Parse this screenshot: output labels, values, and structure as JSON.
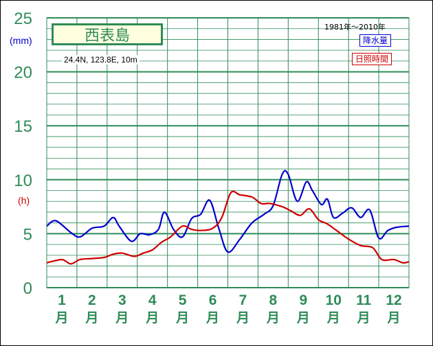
{
  "station": {
    "name": "西表島",
    "coords": "24.4N,  123.8E,  10m",
    "period": "1981年～2010年"
  },
  "legend": {
    "precip_label": "降水量",
    "sun_label": "日照時間"
  },
  "units": {
    "left_unit_mm": "(mm)",
    "left_unit_h": "(h)"
  },
  "colors": {
    "grid": "#2e8b57",
    "axis_text": "#2e8b57",
    "precip": "#0000cc",
    "sun": "#cc0000"
  },
  "chart_data": {
    "type": "line",
    "ylim": [
      0,
      25
    ],
    "yticks": [
      0,
      5,
      10,
      15,
      20,
      25
    ],
    "minor_step": 1,
    "grid": true,
    "legend_position": "top-right",
    "categories": [
      "1月",
      "2月",
      "3月",
      "4月",
      "5月",
      "6月",
      "7月",
      "8月",
      "9月",
      "10月",
      "11月",
      "12月"
    ],
    "month_numbers": [
      "1",
      "2",
      "3",
      "4",
      "5",
      "6",
      "7",
      "8",
      "9",
      "10",
      "11",
      "12"
    ],
    "month_suffix": "月",
    "series": [
      {
        "name": "降水量",
        "color": "#0000cc",
        "x": [
          0.0,
          0.3,
          0.8,
          1.1,
          1.5,
          1.9,
          2.2,
          2.4,
          2.8,
          3.1,
          3.4,
          3.7,
          3.9,
          4.2,
          4.5,
          4.8,
          5.1,
          5.4,
          5.7,
          6.0,
          6.4,
          6.8,
          7.2,
          7.5,
          7.8,
          8.0,
          8.3,
          8.6,
          8.8,
          9.1,
          9.3,
          9.5,
          9.8,
          10.1,
          10.4,
          10.7,
          11.0,
          11.3,
          11.6,
          12.0
        ],
        "values": [
          5.7,
          6.2,
          5.1,
          4.7,
          5.5,
          5.7,
          6.5,
          5.7,
          4.3,
          5.0,
          4.9,
          5.4,
          7.0,
          5.4,
          4.7,
          6.4,
          6.8,
          8.1,
          5.5,
          3.3,
          4.5,
          6.0,
          6.8,
          7.6,
          10.5,
          10.5,
          8.0,
          9.8,
          9.0,
          7.7,
          8.2,
          6.5,
          6.9,
          7.4,
          6.5,
          7.2,
          4.6,
          5.3,
          5.6,
          5.7
        ]
      },
      {
        "name": "日照時間",
        "color": "#cc0000",
        "x": [
          0.0,
          0.5,
          0.8,
          1.1,
          1.5,
          1.9,
          2.2,
          2.5,
          2.9,
          3.2,
          3.5,
          3.8,
          4.1,
          4.5,
          4.8,
          5.1,
          5.5,
          5.8,
          6.1,
          6.4,
          6.8,
          7.1,
          7.4,
          7.8,
          8.1,
          8.4,
          8.7,
          9.0,
          9.3,
          9.6,
          10.0,
          10.4,
          10.8,
          11.1,
          11.5,
          11.8,
          12.0
        ],
        "values": [
          2.3,
          2.6,
          2.2,
          2.6,
          2.7,
          2.8,
          3.1,
          3.2,
          2.9,
          3.2,
          3.5,
          4.2,
          4.7,
          5.7,
          5.4,
          5.3,
          5.5,
          6.5,
          8.8,
          8.6,
          8.4,
          7.8,
          7.8,
          7.5,
          7.1,
          6.7,
          7.3,
          6.3,
          5.9,
          5.3,
          4.5,
          3.9,
          3.7,
          2.6,
          2.6,
          2.3,
          2.4
        ]
      }
    ]
  }
}
